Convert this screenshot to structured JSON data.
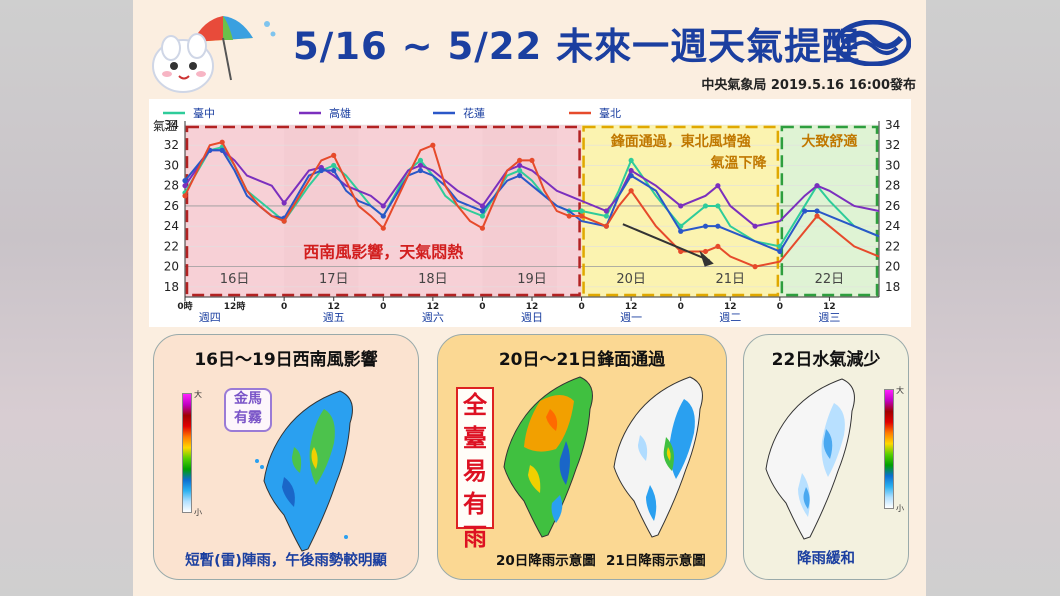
{
  "header": {
    "title": "5/16 ~ 5/22 未來一週天氣提醒",
    "publisher": "中央氣象局 2019.5.16 16:00發布"
  },
  "chart_data": {
    "type": "line",
    "y_axis_label": "氣溫",
    "ylim": [
      17,
      34
    ],
    "y_ticks": [
      18,
      20,
      22,
      24,
      26,
      28,
      30,
      32,
      34
    ],
    "x_hours": [
      0,
      6,
      9,
      12,
      15,
      18,
      21,
      24,
      30,
      33,
      36,
      39,
      42,
      45,
      48,
      54,
      57,
      60,
      63,
      66,
      69,
      72,
      78,
      81,
      84,
      87,
      90,
      93,
      96,
      102,
      105,
      108,
      114,
      120,
      126,
      129,
      132,
      138,
      144,
      150,
      153,
      156,
      162,
      168
    ],
    "x_tick_labels": [
      {
        "hour": 0,
        "text": "0時"
      },
      {
        "hour": 12,
        "text": "12時"
      },
      {
        "hour": 24,
        "text": "0"
      },
      {
        "hour": 36,
        "text": "12"
      },
      {
        "hour": 48,
        "text": "0"
      },
      {
        "hour": 60,
        "text": "12"
      },
      {
        "hour": 72,
        "text": "0"
      },
      {
        "hour": 84,
        "text": "12"
      },
      {
        "hour": 96,
        "text": "0"
      },
      {
        "hour": 108,
        "text": "12"
      },
      {
        "hour": 120,
        "text": "0"
      },
      {
        "hour": 132,
        "text": "12"
      },
      {
        "hour": 144,
        "text": "0"
      },
      {
        "hour": 156,
        "text": "12"
      }
    ],
    "weekday_labels": [
      {
        "hour": 6,
        "text": "週四"
      },
      {
        "hour": 36,
        "text": "週五"
      },
      {
        "hour": 60,
        "text": "週六"
      },
      {
        "hour": 84,
        "text": "週日"
      },
      {
        "hour": 108,
        "text": "週一"
      },
      {
        "hour": 132,
        "text": "週二"
      },
      {
        "hour": 156,
        "text": "週三"
      }
    ],
    "day_labels": [
      {
        "hour": 12,
        "text": "16日"
      },
      {
        "hour": 36,
        "text": "17日"
      },
      {
        "hour": 60,
        "text": "18日"
      },
      {
        "hour": 84,
        "text": "19日"
      },
      {
        "hour": 108,
        "text": "20日"
      },
      {
        "hour": 132,
        "text": "21日"
      },
      {
        "hour": 156,
        "text": "22日"
      }
    ],
    "regions": [
      {
        "from": 0,
        "to": 96,
        "color": "#f7d0d6",
        "border": "#b22222",
        "label": "西南風影響，天氣悶熱",
        "label_color": "#d21e1e"
      },
      {
        "from": 96,
        "to": 144,
        "color": "#fbf3b0",
        "border": "#e0a800",
        "label": "鋒面通過，東北風增強",
        "label2": "氣溫下降",
        "label_color": "#c07800"
      },
      {
        "from": 144,
        "to": 168,
        "color": "#dff3d4",
        "border": "#2e9e3e",
        "label": "大致舒適",
        "label_color": "#c07800"
      }
    ],
    "reference_line": 20,
    "series": [
      {
        "name": "臺中",
        "color": "#2ecc9a",
        "values": [
          27.3,
          31.5,
          31.8,
          30,
          27.5,
          26.5,
          25.5,
          24.5,
          28,
          29.5,
          30,
          29,
          27.5,
          26,
          25,
          29.5,
          30.5,
          29,
          27,
          26,
          25.5,
          25,
          29,
          29.5,
          28.5,
          27,
          26,
          25.5,
          25.5,
          25,
          27.5,
          30.5,
          27,
          24,
          26,
          26,
          24,
          22.5,
          22,
          26,
          28,
          26.5,
          24,
          23
        ]
      },
      {
        "name": "高雄",
        "color": "#7b2fbe",
        "values": [
          28,
          31.5,
          31.5,
          30.5,
          29,
          28.5,
          28,
          26.3,
          29.5,
          29.8,
          29,
          28,
          27.5,
          27,
          26,
          29.5,
          30,
          29.5,
          28.5,
          27.5,
          26.8,
          26,
          29.5,
          30,
          29.5,
          28.5,
          27.5,
          27,
          26.5,
          25.5,
          27,
          29.5,
          28,
          26,
          27,
          28,
          26,
          24,
          24.5,
          27,
          28,
          27.5,
          26,
          25.5
        ]
      },
      {
        "name": "花蓮",
        "color": "#2a57c8",
        "values": [
          28.5,
          31.5,
          31.5,
          29.5,
          27,
          26,
          25,
          24.8,
          29,
          29.5,
          29.5,
          27.5,
          26.5,
          26,
          25,
          29,
          29.5,
          29,
          28,
          26.5,
          26,
          25.5,
          28.5,
          29,
          28,
          27,
          26,
          25.5,
          24.5,
          24,
          27,
          29,
          27.5,
          23.5,
          24,
          24,
          23.5,
          22.5,
          21.5,
          25.5,
          25.5,
          25,
          24,
          23
        ]
      },
      {
        "name": "臺北",
        "color": "#e64a2b",
        "values": [
          27,
          32,
          32.3,
          30,
          27.5,
          26,
          25,
          24.5,
          28.5,
          30.5,
          31,
          28.5,
          26,
          25,
          23.8,
          29,
          31.5,
          32,
          28,
          26,
          24.5,
          23.8,
          29.5,
          30.5,
          30.5,
          27.5,
          25.5,
          25,
          25,
          24,
          26,
          27.5,
          24,
          21.5,
          21.5,
          22,
          21,
          20,
          20.5,
          23.5,
          25,
          24,
          22,
          21
        ]
      }
    ]
  },
  "panels": [
    {
      "title": "16日～19日西南風影響",
      "caption": "短暫(雷)陣雨，午後雨勢較明顯",
      "badge": "金馬有霧",
      "badge_line1": "金馬",
      "badge_line2": "有霧",
      "caption_color": "#1b3fa0"
    },
    {
      "title": "20日～21日鋒面通過",
      "badge": "全臺易有雨",
      "badge_chars": [
        "全",
        "臺",
        "易",
        "有",
        "雨"
      ],
      "caption_left": "20日降雨示意圖",
      "caption_right": "21日降雨示意圖"
    },
    {
      "title": "22日水氣減少",
      "caption": "降雨緩和",
      "caption_color": "#1b3fa0"
    }
  ],
  "rain_scale": {
    "top": "大",
    "bottom": "小"
  }
}
